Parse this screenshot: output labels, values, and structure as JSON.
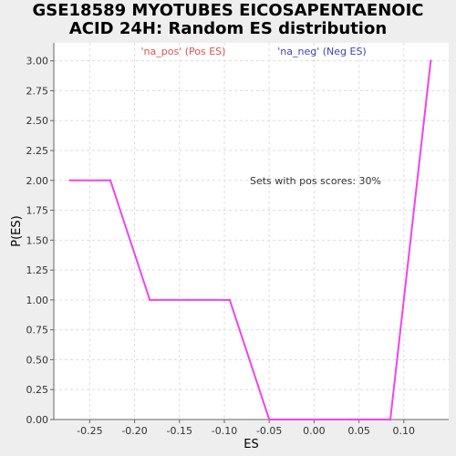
{
  "chart_data": {
    "type": "line",
    "title": "GSE18589 MYOTUBES EICOSAPENTAENOIC\nACID 24H: Random ES distribution",
    "xlabel": "ES",
    "ylabel": "P(ES)",
    "xlim": [
      -0.29,
      0.15
    ],
    "ylim": [
      0,
      3.15
    ],
    "x_ticks": [
      -0.25,
      -0.2,
      -0.15,
      -0.1,
      -0.05,
      0.0,
      0.05,
      0.1
    ],
    "x_tick_labels": [
      "-0.25",
      "-0.20",
      "-0.15",
      "-0.10",
      "-0.05",
      "0.00",
      "0.05",
      "0.10"
    ],
    "y_ticks": [
      0,
      0.25,
      0.5,
      0.75,
      1.0,
      1.25,
      1.5,
      1.75,
      2.0,
      2.25,
      2.5,
      2.75,
      3.0
    ],
    "y_tick_labels": [
      "0.00",
      "0.25",
      "0.50",
      "0.75",
      "1.00",
      "1.25",
      "1.50",
      "1.75",
      "2.00",
      "2.25",
      "2.50",
      "2.75",
      "3.00"
    ],
    "grid": true,
    "legend": [
      {
        "label": "'na_pos' (Pos ES)",
        "color": "#e05050"
      },
      {
        "label": "'na_neg' (Neg ES)",
        "color": "#4040c0"
      }
    ],
    "annotation": "Sets with pos scores: 30%",
    "series": [
      {
        "color": "#ee44ee",
        "x": [
          -0.272,
          -0.227,
          -0.183,
          -0.139,
          -0.094,
          -0.05,
          0.0,
          0.04,
          0.085,
          0.13
        ],
        "y": [
          2,
          2,
          1,
          1,
          1,
          0,
          0,
          0,
          0,
          3
        ]
      }
    ]
  }
}
